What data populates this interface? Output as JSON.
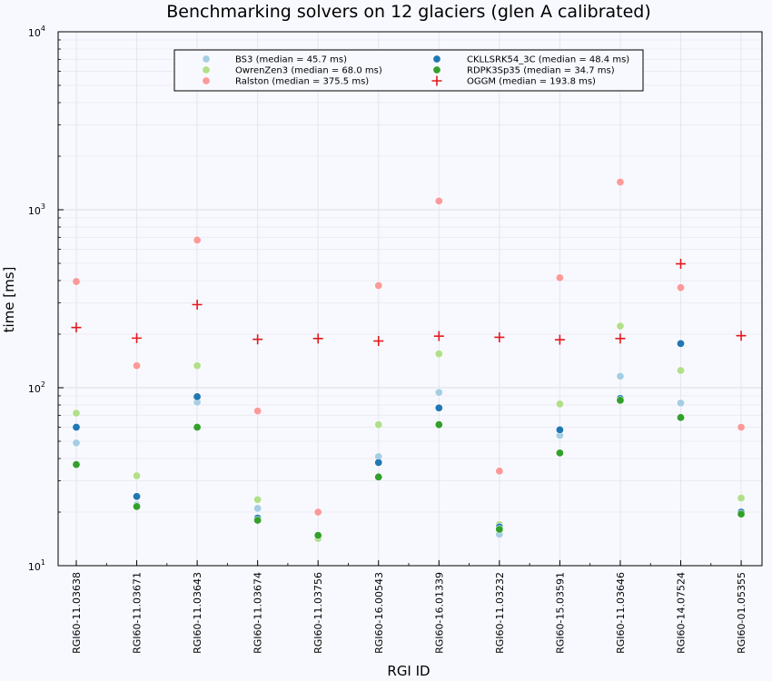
{
  "chart_data": {
    "type": "scatter",
    "title": "Benchmarking solvers on 12 glaciers (glen A calibrated)",
    "xlabel": "RGI ID",
    "ylabel": "time [ms]",
    "yscale": "log",
    "ylim": [
      10,
      10000
    ],
    "y_ticks": [
      {
        "value": 10,
        "base": "10",
        "exp": "1"
      },
      {
        "value": 100,
        "base": "10",
        "exp": "2"
      },
      {
        "value": 1000,
        "base": "10",
        "exp": "3"
      },
      {
        "value": 10000,
        "base": "10",
        "exp": "4"
      }
    ],
    "grid": true,
    "legend_position": "top-center",
    "categories": [
      "RGI60-11.03638",
      "RGI60-11.03671",
      "RGI60-11.03643",
      "RGI60-11.03674",
      "RGI60-11.03756",
      "RGI60-16.00543",
      "RGI60-16.01339",
      "RGI60-11.03232",
      "RGI60-15.03591",
      "RGI60-11.03646",
      "RGI60-14.07524",
      "RGI60-01.05355"
    ],
    "series": [
      {
        "name": "BS3 (median = 45.7 ms)",
        "color": "#a6cee3",
        "marker": "circle",
        "values": [
          49,
          22,
          83,
          21,
          14.5,
          41,
          94,
          15,
          54,
          116,
          82,
          19.5
        ]
      },
      {
        "name": "OwrenZen3 (median = 68.0 ms)",
        "color": "#b2df8a",
        "marker": "circle",
        "values": [
          72,
          32,
          133,
          23.5,
          14.2,
          62,
          155,
          17,
          81,
          222,
          125,
          24
        ]
      },
      {
        "name": "Ralston (median = 375.5 ms)",
        "color": "#fb9a99",
        "marker": "circle",
        "values": [
          395,
          133,
          675,
          74,
          20,
          375,
          1120,
          34,
          415,
          1430,
          365,
          60
        ]
      },
      {
        "name": "CKLLSRK54_3C (median = 48.4 ms)",
        "color": "#1f78b4",
        "marker": "circle",
        "values": [
          60,
          24.5,
          89,
          18.5,
          14.8,
          38,
          77,
          16.5,
          58,
          87,
          177,
          20
        ]
      },
      {
        "name": "RDPK3Sp35 (median = 34.7 ms)",
        "color": "#33a02c",
        "marker": "circle",
        "values": [
          37,
          21.5,
          60,
          18,
          14.8,
          31.5,
          62,
          16,
          43,
          85,
          68,
          19.5
        ]
      },
      {
        "name": "OGGM (median = 193.8 ms)",
        "color": "#e31a1c",
        "marker": "cross",
        "values": [
          218,
          190,
          293,
          187,
          189,
          183,
          195,
          192,
          186,
          189,
          497,
          196
        ]
      }
    ]
  }
}
